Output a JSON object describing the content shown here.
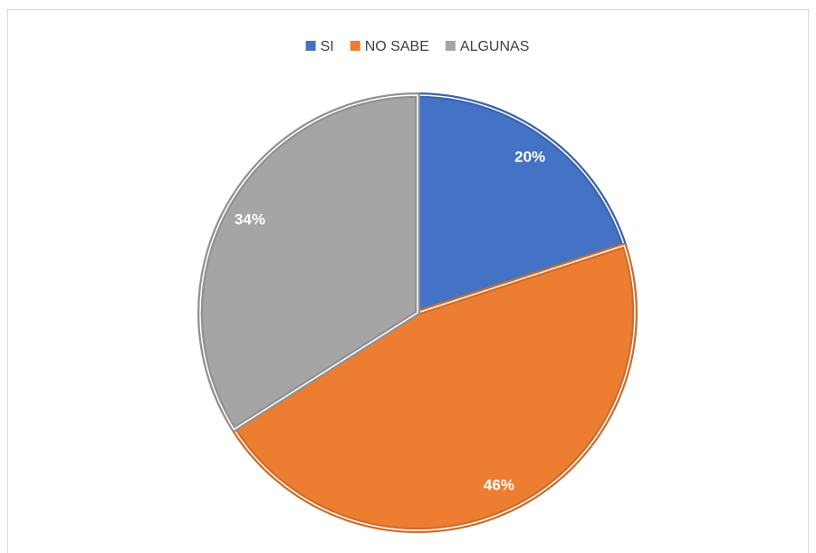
{
  "chart_data": {
    "type": "pie",
    "categories": [
      "SI",
      "NO SABE",
      "ALGUNAS"
    ],
    "values": [
      20,
      46,
      34
    ],
    "value_labels": [
      "20%",
      "46%",
      "34%"
    ],
    "colors": [
      "#4472c4",
      "#ed7d31",
      "#a5a5a5"
    ],
    "legend": "top"
  }
}
